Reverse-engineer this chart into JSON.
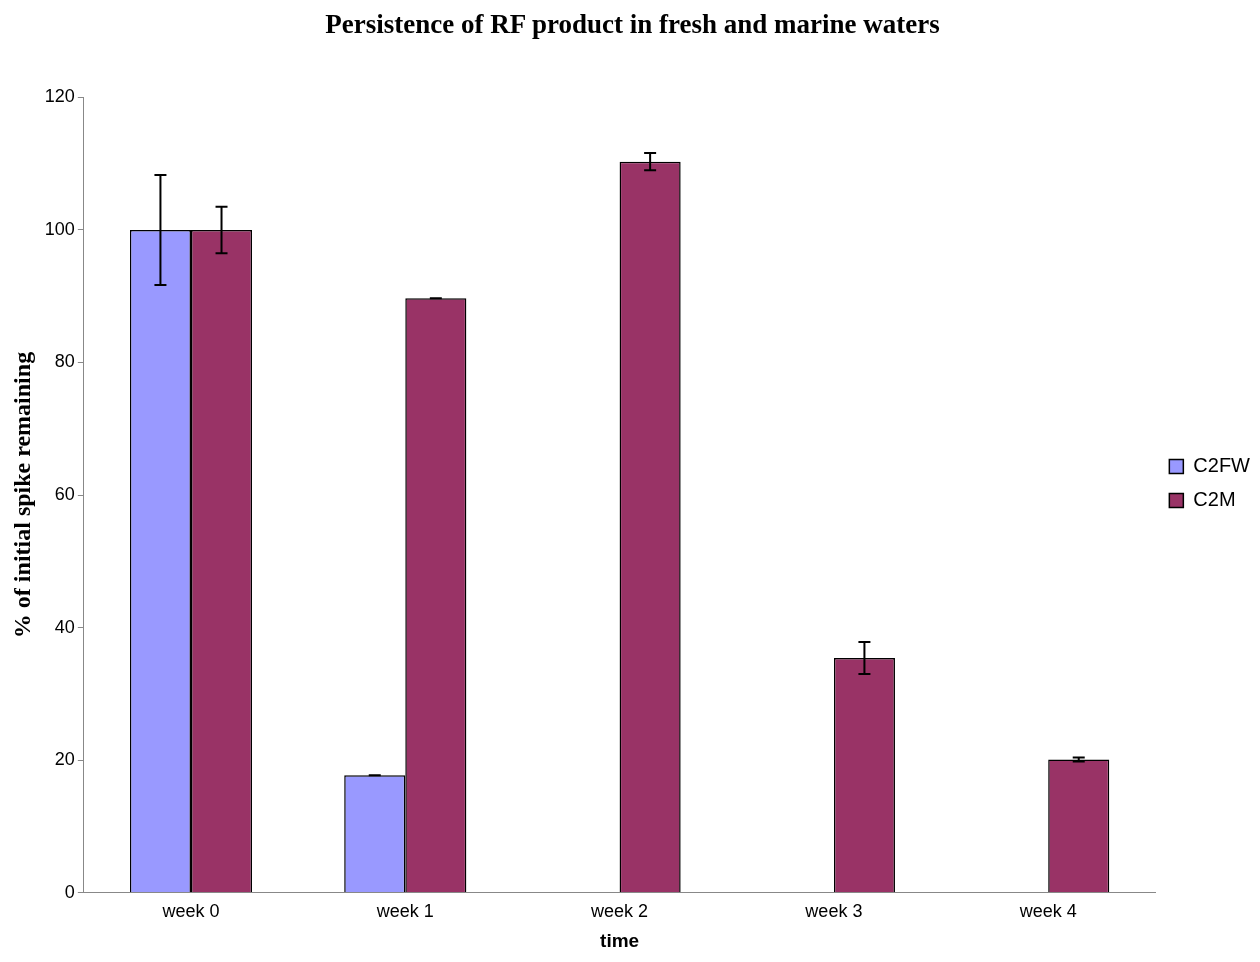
{
  "chart_data": {
    "type": "bar",
    "title": "Persistence of RF product in fresh and marine waters",
    "xlabel": "time",
    "ylabel": "% of initial spike remaining",
    "categories": [
      "week 0",
      "week 1",
      "week 2",
      "week 3",
      "week 4"
    ],
    "series": [
      {
        "name": "C2FW",
        "color": "#9999ff",
        "values": [
          100,
          17.7,
          0,
          0,
          0
        ],
        "errors": [
          8.3,
          0,
          null,
          null,
          null
        ]
      },
      {
        "name": "C2M",
        "color": "#993366",
        "values": [
          100,
          89.7,
          110.3,
          35.4,
          20.1
        ],
        "errors": [
          3.5,
          0,
          1.3,
          2.4,
          0.3
        ]
      }
    ],
    "ylim": [
      0,
      120
    ],
    "yticks": [
      0,
      20,
      40,
      60,
      80,
      100,
      120
    ],
    "grid": false,
    "legend": "right"
  }
}
